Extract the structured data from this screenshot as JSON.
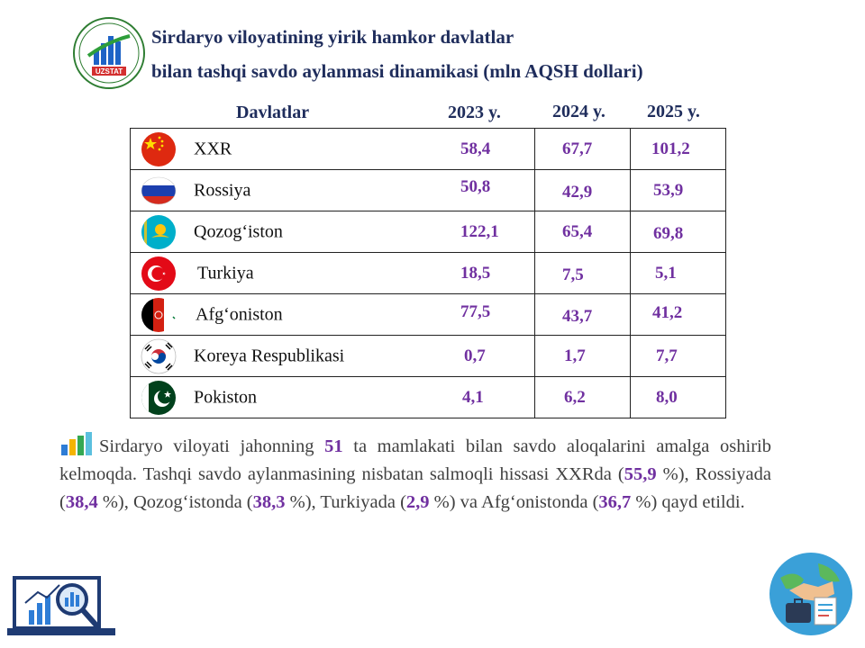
{
  "header": {
    "logo_text": "UZSTAT",
    "title_line1": "Sirdaryo viloyatining yirik hamkor davlatlar",
    "title_line2": "bilan tashqi savdo aylanmasi dinamikasi (mln AQSH dollari)"
  },
  "table": {
    "headers": {
      "country": "Davlatlar",
      "y2023": "2023 y.",
      "y2024": "2024 y.",
      "y2025": "2025 y."
    },
    "rows": [
      {
        "country": "XXR",
        "flag": "china-flag-icon",
        "v2023": "58,4",
        "v2024": "67,7",
        "v2025": "101,2"
      },
      {
        "country": "Rossiya",
        "flag": "russia-flag-icon",
        "v2023": "50,8",
        "v2024": "42,9",
        "v2025": "53,9"
      },
      {
        "country": "Qozog‘iston",
        "flag": "kazakhstan-flag-icon",
        "v2023": "122,1",
        "v2024": "65,4",
        "v2025": "69,8"
      },
      {
        "country": "Turkiya",
        "flag": "turkey-flag-icon",
        "v2023": "18,5",
        "v2024": "7,5",
        "v2025": "5,1"
      },
      {
        "country": "Afg‘oniston",
        "flag": "afghanistan-flag-icon",
        "v2023": "77,5",
        "v2024": "43,7",
        "v2025": "41,2"
      },
      {
        "country": "Koreya Respublikasi",
        "flag": "korea-flag-icon",
        "v2023": "0,7",
        "v2024": "1,7",
        "v2025": "7,7"
      },
      {
        "country": "Pokiston",
        "flag": "pakistan-flag-icon",
        "v2023": "4,1",
        "v2024": "6,2",
        "v2025": "8,0"
      }
    ]
  },
  "paragraph": {
    "p1": "Sirdaryo viloyati jahonning ",
    "count": "51",
    "p2": " ta mamlakati bilan savdo aloqalarini amalga oshirib kelmoqda. Tashqi savdo aylanmasining nisbatan salmoqli hissasi XXRda (",
    "s1": "55,9",
    "p3": " %), Rossiyada (",
    "s2": "38,4",
    "p4": " %), Qozog‘istonda (",
    "s3": "38,3",
    "p5": " %), Turkiyada (",
    "s4": "2,9",
    "p6": " %) va Afg‘onistonda (",
    "s5": "36,7",
    "p7": " %) qayd etildi."
  },
  "colors": {
    "title": "#1f2d5c",
    "value": "#7030a0",
    "body_text": "#404040"
  },
  "icons": [
    "uzstat-logo-icon",
    "bar-chart-icon",
    "laptop-analytics-icon",
    "handshake-globe-icon"
  ]
}
